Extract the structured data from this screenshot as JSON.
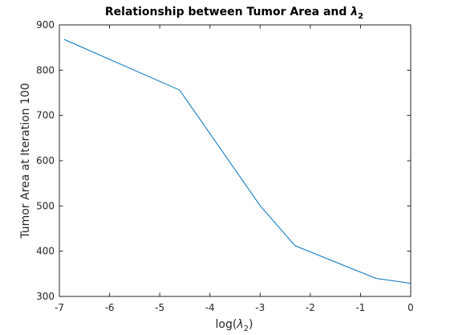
{
  "chart_data": {
    "type": "line",
    "title_main": "Relationship between Tumor Area and ",
    "title_symbol": "λ",
    "title_subscript": "2",
    "xlabel_prefix": "log(",
    "xlabel_symbol": "λ",
    "xlabel_subscript": "2",
    "xlabel_suffix": ")",
    "ylabel": "Tumor Area at Iteration 100",
    "xlim": [
      -7,
      0
    ],
    "ylim": [
      300,
      900
    ],
    "x_ticks": [
      -7,
      -6,
      -5,
      -4,
      -3,
      -2,
      -1,
      0
    ],
    "y_ticks": [
      300,
      400,
      500,
      600,
      700,
      800,
      900
    ],
    "grid": false,
    "legend": false,
    "line_color": "#0072bd",
    "series": [
      {
        "x": [
          -6.908,
          -4.605,
          -2.996,
          -2.303,
          -0.693,
          0
        ],
        "y": [
          868,
          756,
          500,
          412,
          340,
          329
        ]
      }
    ]
  }
}
